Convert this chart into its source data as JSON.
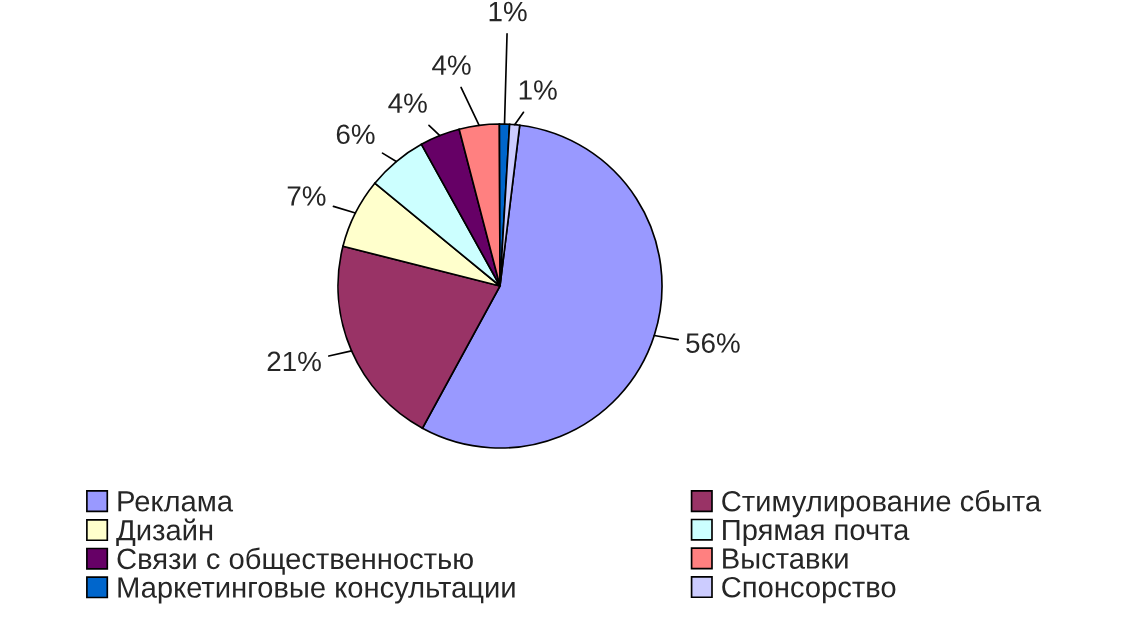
{
  "chart_data": {
    "type": "pie",
    "categories": [
      "Реклама",
      "Стимулирование сбыта",
      "Дизайн",
      "Прямая почта",
      "Связи с общественностью",
      "Выставки",
      "Маркетинговые консультации",
      "Спонсорство"
    ],
    "values": [
      56,
      21,
      7,
      6,
      4,
      4,
      1,
      1
    ],
    "colors": [
      "#9999ff",
      "#993366",
      "#ffffcc",
      "#ccffff",
      "#660066",
      "#ff8080",
      "#0066cc",
      "#ccccff"
    ],
    "value_labels": [
      "56%",
      "21%",
      "7%",
      "6%",
      "4%",
      "4%",
      "1%",
      "1%"
    ],
    "legend": "bottom"
  }
}
